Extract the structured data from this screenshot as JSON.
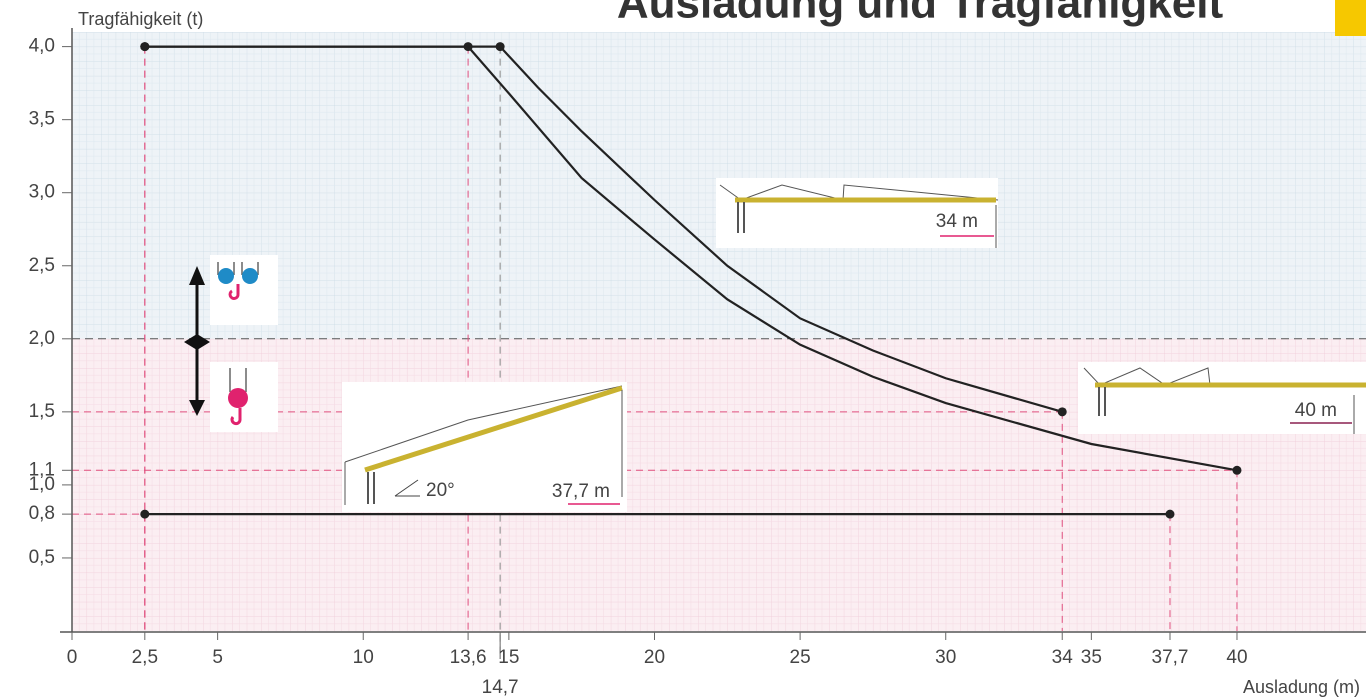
{
  "chart_data": {
    "type": "line",
    "title": "Ausladung und Tragfähigkeit",
    "y_label": "Tragfähigkeit (t)",
    "x_label": "Ausladung (m)",
    "xlim": [
      0,
      44.43
    ],
    "ylim": [
      0,
      4.1
    ],
    "xticks": [
      0,
      {
        "value": 2.5,
        "label": "2,5"
      },
      5,
      10,
      {
        "value": 13.6,
        "label": "13,6"
      },
      {
        "value": 14.7,
        "label": "14,7"
      },
      15,
      20,
      25,
      30,
      34,
      35,
      {
        "value": 37.7,
        "label": "37,7"
      },
      40
    ],
    "yticks": [
      {
        "value": 0.5,
        "label": "0,5"
      },
      {
        "value": 0.8,
        "label": "0,8"
      },
      {
        "value": 1.0,
        "label": "1,0"
      },
      {
        "value": 1.1,
        "label": "1,1"
      },
      {
        "value": 1.5,
        "label": "1,5"
      },
      {
        "value": 2.0,
        "label": "2,0"
      },
      {
        "value": 2.5,
        "label": "2,5"
      },
      {
        "value": 3.0,
        "label": "3,0"
      },
      {
        "value": 3.5,
        "label": "3,5"
      },
      {
        "value": 4.0,
        "label": "4,0"
      }
    ],
    "grid": true,
    "series": [
      {
        "name": "34 m",
        "color": "#222222",
        "x": [
          2.5,
          14.7,
          16,
          17.5,
          20,
          22.5,
          25,
          27.5,
          30,
          34
        ],
        "values": [
          4.0,
          4.0,
          3.72,
          3.42,
          2.95,
          2.5,
          2.14,
          1.92,
          1.73,
          1.5
        ]
      },
      {
        "name": "40 m",
        "color": "#222222",
        "x": [
          2.5,
          13.6,
          15,
          17.5,
          20,
          22.5,
          25,
          27.5,
          30,
          35,
          40
        ],
        "values": [
          4.0,
          4.0,
          3.68,
          3.1,
          2.68,
          2.27,
          1.96,
          1.74,
          1.56,
          1.28,
          1.1
        ]
      },
      {
        "name": "37,7 m",
        "color": "#222222",
        "x": [
          2.5,
          37.7
        ],
        "values": [
          0.8,
          0.8
        ]
      }
    ],
    "annotations": [
      "20°"
    ]
  }
}
